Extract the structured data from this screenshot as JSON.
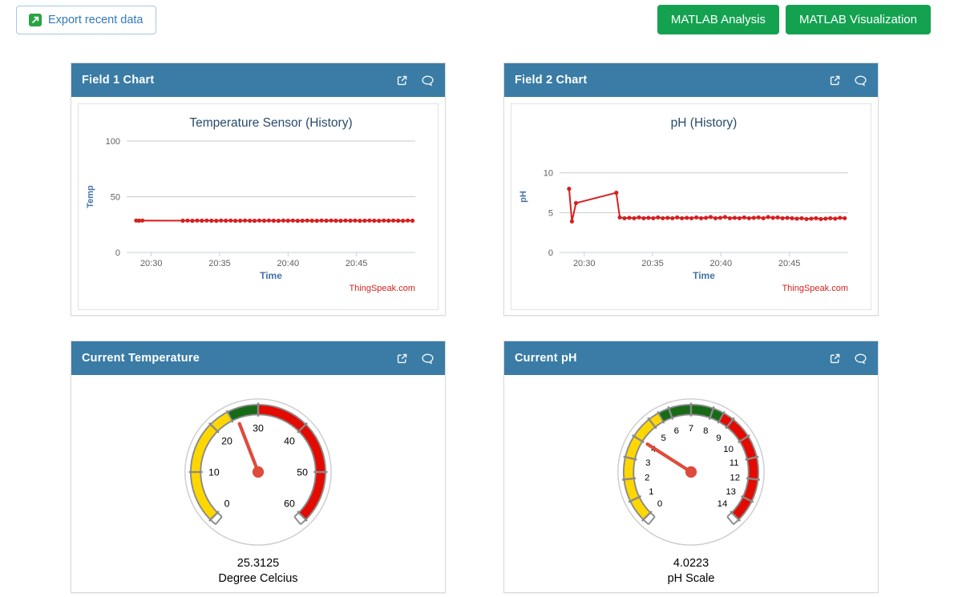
{
  "toolbar": {
    "export_label": "Export recent data",
    "matlab_analysis_label": "MATLAB Analysis",
    "matlab_visualization_label": "MATLAB Visualization"
  },
  "panels": [
    {
      "title": "Field 1 Chart"
    },
    {
      "title": "Field 2 Chart"
    },
    {
      "title": "Current Temperature"
    },
    {
      "title": "Current pH"
    }
  ],
  "colors": {
    "header-blue": "#3a7ca6",
    "button-green": "#14a251",
    "export-blue": "#337ab7",
    "export-border": "#a6c8e4",
    "export-icon-green": "#28a445",
    "panel-border": "#d9d9d9",
    "line-red": "#d62020",
    "chart-title": "#274b6d",
    "axis-label-blue": "#4572a7",
    "tick-gray": "#606060",
    "grid-gray": "#c9c9c9",
    "axis-line": "#c0d0e0",
    "watermark-red": "#d62020",
    "gauge-ring": "#8a8a8a",
    "gauge-needle": "#df4b3c",
    "gauge-outer": "#cccccc"
  },
  "chart_data": [
    {
      "type": "line",
      "title": "Temperature Sensor (History)",
      "xlabel": "Time",
      "ylabel": "Temp",
      "watermark": "ThingSpeak.com",
      "x_range": [
        28.2,
        49.3
      ],
      "y_range": [
        0,
        100
      ],
      "y_ticks": [
        0,
        50,
        100
      ],
      "x_ticks": [
        [
          30,
          "20:30"
        ],
        [
          35,
          "20:35"
        ],
        [
          40,
          "20:40"
        ],
        [
          45,
          "20:45"
        ]
      ],
      "series": [
        {
          "name": "Temp",
          "color": "#d62020",
          "points": [
            [
              28.9,
              28.6
            ],
            [
              29.1,
              28.5
            ],
            [
              29.35,
              28.6
            ],
            [
              32.3,
              28.5
            ],
            [
              32.65,
              28.6
            ],
            [
              33.0,
              28.4
            ],
            [
              33.35,
              28.6
            ],
            [
              33.7,
              28.5
            ],
            [
              34.05,
              28.6
            ],
            [
              34.4,
              28.5
            ],
            [
              34.75,
              28.4
            ],
            [
              35.1,
              28.6
            ],
            [
              35.45,
              28.5
            ],
            [
              35.8,
              28.6
            ],
            [
              36.15,
              28.4
            ],
            [
              36.5,
              28.5
            ],
            [
              36.85,
              28.6
            ],
            [
              37.2,
              28.5
            ],
            [
              37.55,
              28.4
            ],
            [
              37.9,
              28.6
            ],
            [
              38.25,
              28.5
            ],
            [
              38.6,
              28.6
            ],
            [
              38.95,
              28.5
            ],
            [
              39.3,
              28.4
            ],
            [
              39.65,
              28.6
            ],
            [
              40.0,
              28.5
            ],
            [
              40.35,
              28.6
            ],
            [
              40.7,
              28.4
            ],
            [
              41.05,
              28.5
            ],
            [
              41.4,
              28.6
            ],
            [
              41.75,
              28.5
            ],
            [
              42.1,
              28.4
            ],
            [
              42.45,
              28.6
            ],
            [
              42.8,
              28.5
            ],
            [
              43.15,
              28.6
            ],
            [
              43.5,
              28.5
            ],
            [
              43.85,
              28.4
            ],
            [
              44.2,
              28.6
            ],
            [
              44.55,
              28.5
            ],
            [
              44.9,
              28.6
            ],
            [
              45.25,
              28.4
            ],
            [
              45.6,
              28.5
            ],
            [
              45.95,
              28.6
            ],
            [
              46.3,
              28.5
            ],
            [
              46.65,
              28.4
            ],
            [
              47.0,
              28.6
            ],
            [
              47.35,
              28.5
            ],
            [
              47.7,
              28.6
            ],
            [
              48.05,
              28.5
            ],
            [
              48.4,
              28.4
            ],
            [
              48.75,
              28.6
            ],
            [
              49.1,
              28.5
            ]
          ]
        }
      ]
    },
    {
      "type": "line",
      "title": "pH (History)",
      "xlabel": "Time",
      "ylabel": "pH",
      "watermark": "ThingSpeak.com",
      "x_range": [
        28.2,
        49.3
      ],
      "y_range": [
        0,
        14
      ],
      "y_ticks": [
        0,
        5,
        10
      ],
      "x_ticks": [
        [
          30,
          "20:30"
        ],
        [
          35,
          "20:35"
        ],
        [
          40,
          "20:40"
        ],
        [
          45,
          "20:45"
        ]
      ],
      "series": [
        {
          "name": "pH",
          "color": "#d62020",
          "points": [
            [
              28.9,
              8.0
            ],
            [
              29.1,
              3.9
            ],
            [
              29.4,
              6.2
            ],
            [
              32.35,
              7.5
            ],
            [
              32.6,
              4.4
            ],
            [
              32.95,
              4.3
            ],
            [
              33.3,
              4.35
            ],
            [
              33.65,
              4.3
            ],
            [
              34.0,
              4.4
            ],
            [
              34.35,
              4.3
            ],
            [
              34.7,
              4.35
            ],
            [
              35.05,
              4.3
            ],
            [
              35.4,
              4.4
            ],
            [
              35.75,
              4.3
            ],
            [
              36.1,
              4.35
            ],
            [
              36.45,
              4.3
            ],
            [
              36.8,
              4.4
            ],
            [
              37.15,
              4.3
            ],
            [
              37.5,
              4.35
            ],
            [
              37.85,
              4.3
            ],
            [
              38.2,
              4.4
            ],
            [
              38.55,
              4.3
            ],
            [
              38.9,
              4.35
            ],
            [
              39.25,
              4.45
            ],
            [
              39.6,
              4.3
            ],
            [
              39.95,
              4.35
            ],
            [
              40.3,
              4.45
            ],
            [
              40.65,
              4.3
            ],
            [
              41.0,
              4.35
            ],
            [
              41.35,
              4.3
            ],
            [
              41.7,
              4.4
            ],
            [
              42.05,
              4.3
            ],
            [
              42.4,
              4.35
            ],
            [
              42.75,
              4.4
            ],
            [
              43.1,
              4.3
            ],
            [
              43.45,
              4.45
            ],
            [
              43.8,
              4.35
            ],
            [
              44.15,
              4.4
            ],
            [
              44.5,
              4.3
            ],
            [
              44.85,
              4.35
            ],
            [
              45.2,
              4.3
            ],
            [
              45.55,
              4.25
            ],
            [
              45.9,
              4.3
            ],
            [
              46.25,
              4.2
            ],
            [
              46.6,
              4.25
            ],
            [
              46.95,
              4.3
            ],
            [
              47.3,
              4.2
            ],
            [
              47.65,
              4.25
            ],
            [
              48.0,
              4.3
            ],
            [
              48.35,
              4.25
            ],
            [
              48.7,
              4.35
            ],
            [
              49.05,
              4.3
            ]
          ]
        }
      ]
    },
    {
      "type": "gauge",
      "value": 25.3125,
      "value_text": "25.3125",
      "unit_label": "Degree Celcius",
      "min": 0,
      "max": 60,
      "major_ticks": [
        0,
        10,
        20,
        30,
        40,
        50,
        60
      ],
      "label_size": 13,
      "bands": [
        {
          "from": 0,
          "to": 24,
          "color": "#ffd700"
        },
        {
          "from": 24,
          "to": 30,
          "color": "#176b17"
        },
        {
          "from": 30,
          "to": 60,
          "color": "#e30b00"
        }
      ]
    },
    {
      "type": "gauge",
      "value": 4.0223,
      "value_text": "4.0223",
      "unit_label": "pH Scale",
      "min": 0,
      "max": 14,
      "major_ticks": [
        0,
        1,
        2,
        3,
        4,
        5,
        6,
        7,
        8,
        9,
        10,
        11,
        12,
        13,
        14
      ],
      "label_size": 12,
      "bands": [
        {
          "from": 0,
          "to": 5.5,
          "color": "#ffd700"
        },
        {
          "from": 5.5,
          "to": 8.5,
          "color": "#176b17"
        },
        {
          "from": 8.5,
          "to": 14,
          "color": "#e30b00"
        }
      ]
    }
  ]
}
